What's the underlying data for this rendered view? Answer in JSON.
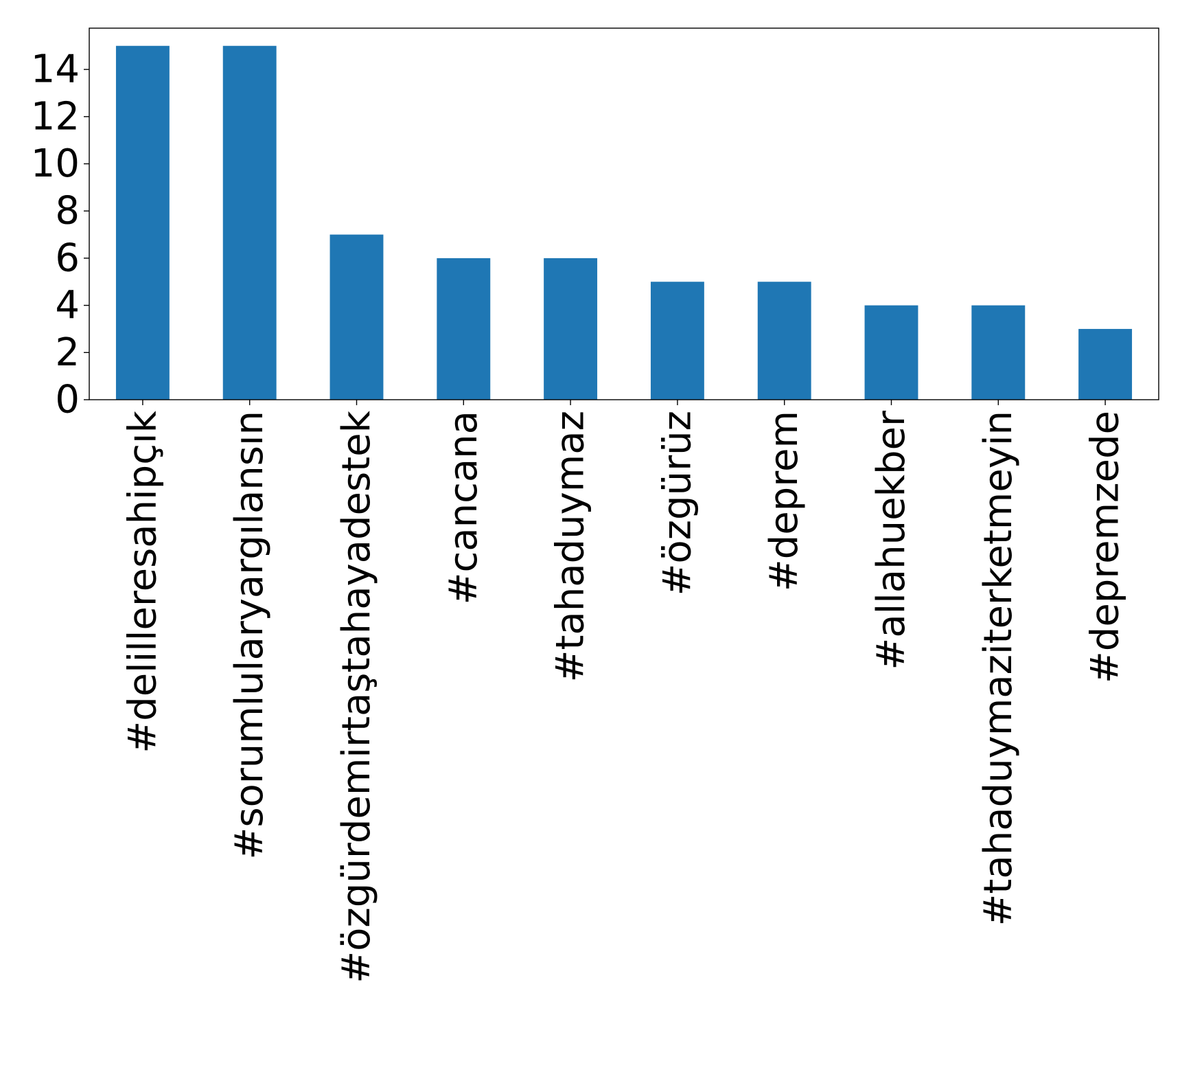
{
  "chart_data": {
    "type": "bar",
    "title": "",
    "xlabel": "",
    "ylabel": "",
    "categories": [
      "#delilleresahipçık",
      "#sorumlularyargılansın",
      "#özgürdemirtaştahayadestek",
      "#cancana",
      "#tahaduymaz",
      "#özgürüz",
      "#deprem",
      "#allahuekber",
      "#tahaduymaziterketmeyin",
      "#depremzede"
    ],
    "values": [
      15,
      15,
      7,
      6,
      6,
      5,
      5,
      4,
      4,
      3
    ],
    "ylim": [
      0,
      15.75
    ],
    "yticks": [
      "0",
      "2",
      "4",
      "6",
      "8",
      "10",
      "12",
      "14"
    ],
    "grid": false,
    "legend": "none",
    "bar_color": "#1f77b4"
  }
}
